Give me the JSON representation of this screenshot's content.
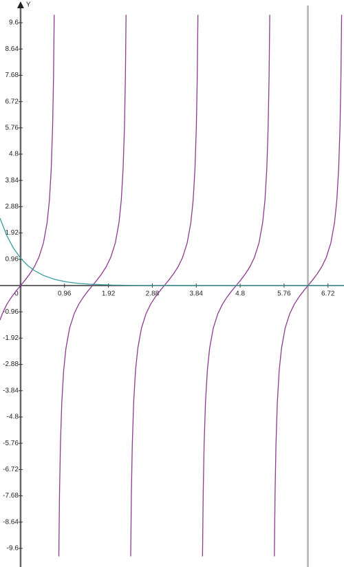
{
  "chart_data": {
    "type": "line",
    "y_axis_label": "Y",
    "xlim": [
      -0.45,
      7.07
    ],
    "ylim": [
      -10.28,
      10.43
    ],
    "xticks": [
      0,
      0.96,
      1.92,
      2.88,
      3.84,
      4.8,
      5.76,
      6.72
    ],
    "yticks": [
      9.6,
      8.64,
      7.68,
      6.72,
      5.76,
      4.8,
      3.84,
      2.88,
      1.92,
      0.96,
      -0.96,
      -1.92,
      -2.88,
      -3.84,
      -4.8,
      -5.76,
      -6.72,
      -7.68,
      -8.64,
      -9.6
    ],
    "grid": false,
    "vline": {
      "x": 6.28,
      "color": "#bdbdbd"
    },
    "series": [
      {
        "color": "#8b3a8f",
        "x": [
          -0.45,
          -0.4,
          -0.3,
          -0.2,
          -0.1,
          0,
          0.1,
          0.2,
          0.3,
          0.4,
          0.5,
          0.58,
          0.63,
          0.67,
          0.7,
          0.72,
          0.735,
          null,
          0.836,
          0.851,
          0.871,
          0.901,
          0.941,
          0.991,
          1.071,
          1.171,
          1.271,
          1.371,
          1.471,
          1.571,
          1.671,
          1.771,
          1.871,
          1.971,
          2.071,
          2.151,
          2.201,
          2.241,
          2.271,
          2.291,
          2.306,
          null,
          2.407,
          2.422,
          2.442,
          2.472,
          2.512,
          2.562,
          2.642,
          2.742,
          2.842,
          2.942,
          3.042,
          3.142,
          3.242,
          3.342,
          3.442,
          3.542,
          3.642,
          3.722,
          3.772,
          3.812,
          3.842,
          3.862,
          3.877,
          null,
          3.977,
          3.992,
          4.012,
          4.042,
          4.082,
          4.132,
          4.212,
          4.312,
          4.412,
          4.512,
          4.612,
          4.712,
          4.812,
          4.912,
          5.012,
          5.112,
          5.212,
          5.292,
          5.342,
          5.382,
          5.412,
          5.432,
          5.447,
          null,
          5.548,
          5.563,
          5.583,
          5.613,
          5.653,
          5.703,
          5.783,
          5.883,
          5.983,
          6.083,
          6.183,
          6.283,
          6.383,
          6.483,
          6.583,
          6.683,
          6.783,
          6.863,
          6.913,
          6.953,
          6.983,
          7.003,
          7.018
        ],
        "values": [
          -1.26,
          -1.03,
          -0.684,
          -0.423,
          -0.203,
          0,
          0.203,
          0.423,
          0.684,
          1.03,
          1.557,
          2.3,
          3.11,
          4.26,
          5.8,
          7.6,
          9.89,
          null,
          -9.89,
          -7.6,
          -5.8,
          -4.26,
          -3.11,
          -2.3,
          -1.557,
          -1.03,
          -0.684,
          -0.423,
          -0.203,
          0,
          0.203,
          0.423,
          0.684,
          1.03,
          1.557,
          2.3,
          3.11,
          4.26,
          5.8,
          7.6,
          9.89,
          null,
          -9.89,
          -7.6,
          -5.8,
          -4.26,
          -3.11,
          -2.3,
          -1.557,
          -1.03,
          -0.684,
          -0.423,
          -0.203,
          0,
          0.203,
          0.423,
          0.684,
          1.03,
          1.557,
          2.3,
          3.11,
          4.26,
          5.8,
          7.6,
          9.89,
          null,
          -9.89,
          -7.6,
          -5.8,
          -4.26,
          -3.11,
          -2.3,
          -1.557,
          -1.03,
          -0.684,
          -0.423,
          -0.203,
          0,
          0.203,
          0.423,
          0.684,
          1.03,
          1.557,
          2.3,
          3.11,
          4.26,
          5.8,
          7.6,
          9.89,
          null,
          -9.89,
          -7.6,
          -5.8,
          -4.26,
          -3.11,
          -2.3,
          -1.557,
          -1.03,
          -0.684,
          -0.423,
          -0.203,
          0,
          0.203,
          0.423,
          0.684,
          1.03,
          1.557,
          2.3,
          3.11,
          4.26,
          5.8,
          7.6,
          9.89
        ]
      },
      {
        "color": "#3a9a9a",
        "x": [
          -0.45,
          -0.3,
          -0.15,
          0,
          0.15,
          0.3,
          0.5,
          0.75,
          1,
          1.25,
          1.5,
          2,
          2.5,
          3,
          4,
          5,
          6,
          7.07
        ],
        "values": [
          2.46,
          1.82,
          1.35,
          1,
          0.741,
          0.549,
          0.368,
          0.223,
          0.135,
          0.082,
          0.05,
          0.018,
          0.0067,
          0.0025,
          0.0003,
          5e-05,
          6e-06,
          7e-07
        ]
      }
    ]
  }
}
